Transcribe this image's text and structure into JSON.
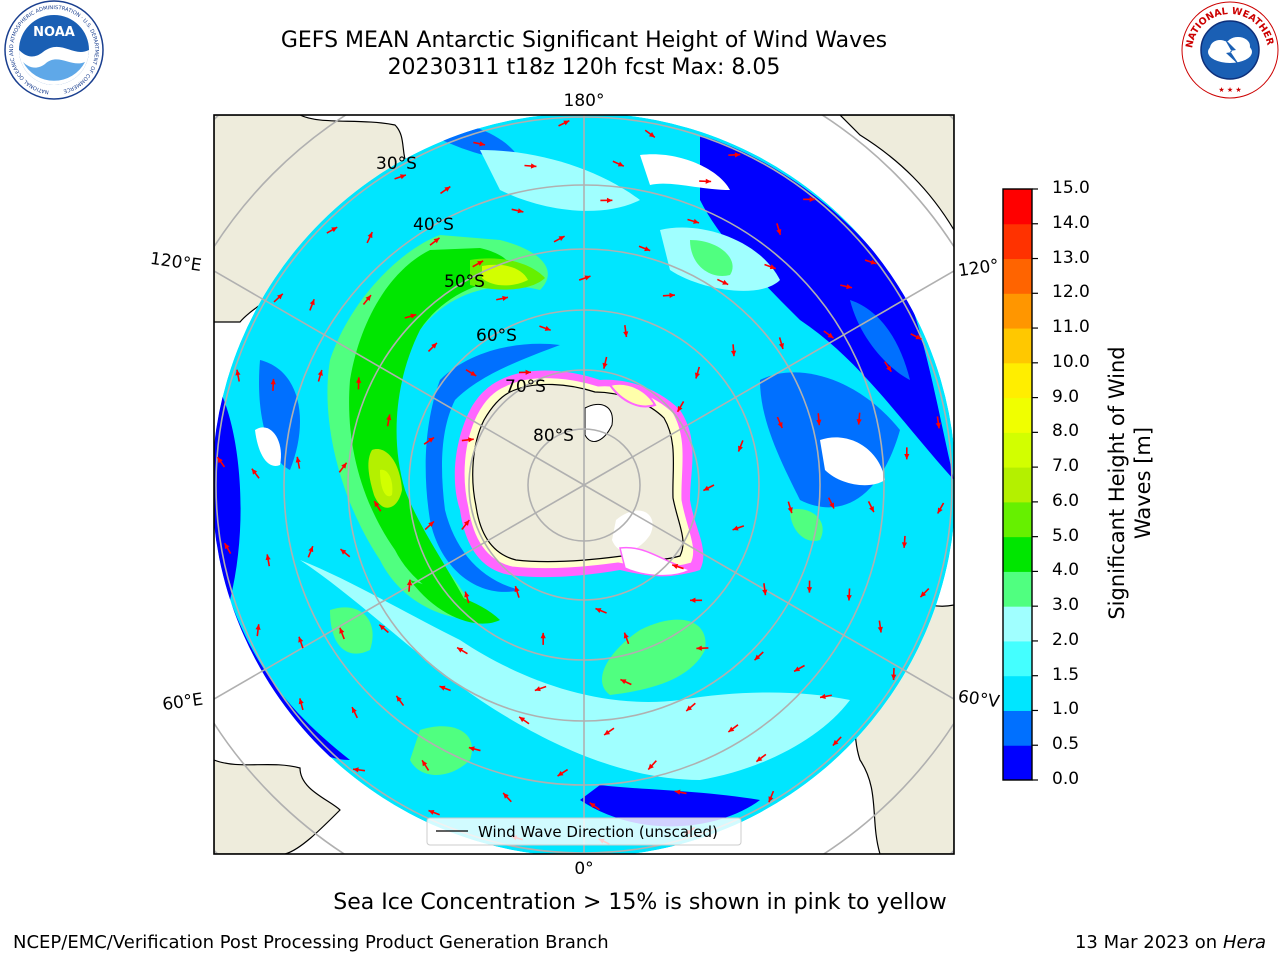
{
  "title": {
    "line1": "GEFS MEAN Antarctic Significant Height of Wind Waves",
    "line2": "20230311 t18z 120h fcst   Max: 8.05"
  },
  "map": {
    "projection": "south-polar-stereographic",
    "meridian_labels": {
      "top": "180°",
      "bottom": "0°",
      "left_upper": "120°E",
      "left_lower": "60°E",
      "right_upper": "120°",
      "right_lower": "60°V"
    },
    "parallel_labels": [
      "30°S",
      "40°S",
      "50°S",
      "60°S",
      "70°S",
      "80°S"
    ],
    "land_color": "#eeecdc",
    "legend_label": "Wind Wave Direction (unscaled)",
    "arrow_color": "#ff0000",
    "ice_colors": [
      "#ff66ff",
      "#ffffcc"
    ]
  },
  "colorbar": {
    "title_line1": "Significant Height of Wind",
    "title_line2": "Waves [m]",
    "ticks": [
      "0.0",
      "0.5",
      "1.0",
      "1.5",
      "2.0",
      "3.0",
      "4.0",
      "5.0",
      "6.0",
      "7.0",
      "8.0",
      "9.0",
      "10.0",
      "11.0",
      "12.0",
      "13.0",
      "14.0",
      "15.0"
    ],
    "colors": [
      "#0000ff",
      "#0070ff",
      "#00e6ff",
      "#44ffff",
      "#a0ffff",
      "#50ff80",
      "#00e600",
      "#66f000",
      "#b4f000",
      "#d2ff00",
      "#f0ff00",
      "#ffee00",
      "#ffc800",
      "#ff9600",
      "#ff6400",
      "#ff3200",
      "#ff0000"
    ]
  },
  "note": "Sea Ice Concentration > 15% is shown in pink to yellow",
  "footer": {
    "credit": "NCEP/EMC/Verification Post Processing Product Generation Branch",
    "date": "13 Mar 2023 on",
    "host": "Hera"
  },
  "logos": {
    "left": {
      "text": "NOAA",
      "ring_text": "NATIONAL OCEANIC AND ATMOSPHERIC ADMINISTRATION · U.S. DEPARTMENT OF COMMERCE"
    },
    "right": {
      "ring_text": "NATIONAL WEATHER SERVICE"
    }
  }
}
